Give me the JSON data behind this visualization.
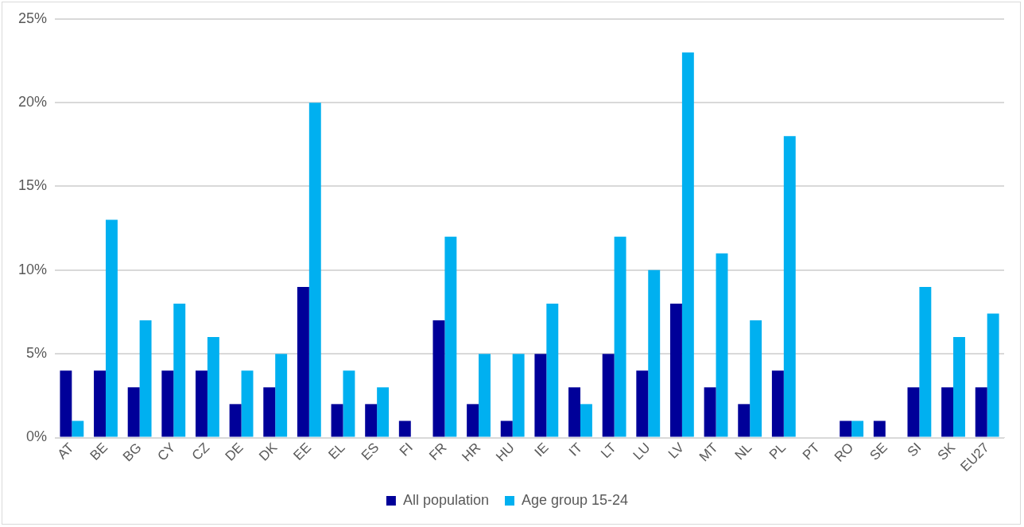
{
  "chart_data": {
    "type": "bar",
    "categories": [
      "AT",
      "BE",
      "BG",
      "CY",
      "CZ",
      "DE",
      "DK",
      "EE",
      "EL",
      "ES",
      "FI",
      "FR",
      "HR",
      "HU",
      "IE",
      "IT",
      "LT",
      "LU",
      "LV",
      "MT",
      "NL",
      "PL",
      "PT",
      "RO",
      "SE",
      "SI",
      "SK",
      "EU27"
    ],
    "series": [
      {
        "name": "All population",
        "color": "#000099",
        "values": [
          4,
          4,
          3,
          4,
          4,
          2,
          3,
          9,
          2,
          2,
          1,
          7,
          2,
          1,
          5,
          3,
          5,
          4,
          8,
          3,
          2,
          4,
          0,
          1,
          1,
          3,
          3,
          3
        ]
      },
      {
        "name": "Age group 15-24",
        "color": "#00b0f0",
        "values": [
          1,
          13,
          7,
          8,
          6,
          4,
          5,
          20,
          4,
          3,
          0,
          12,
          5,
          5,
          8,
          2,
          12,
          10,
          23,
          11,
          7,
          18,
          0,
          1,
          0,
          9,
          6,
          7.4
        ]
      }
    ],
    "ylim": [
      0,
      25
    ],
    "yticks": [
      {
        "value": 0,
        "label": "0%"
      },
      {
        "value": 5,
        "label": "5%"
      },
      {
        "value": 10,
        "label": "10%"
      },
      {
        "value": 15,
        "label": "15%"
      },
      {
        "value": 20,
        "label": "20%"
      },
      {
        "value": 25,
        "label": "25%"
      }
    ],
    "grid": "y",
    "legend": "bottom"
  }
}
